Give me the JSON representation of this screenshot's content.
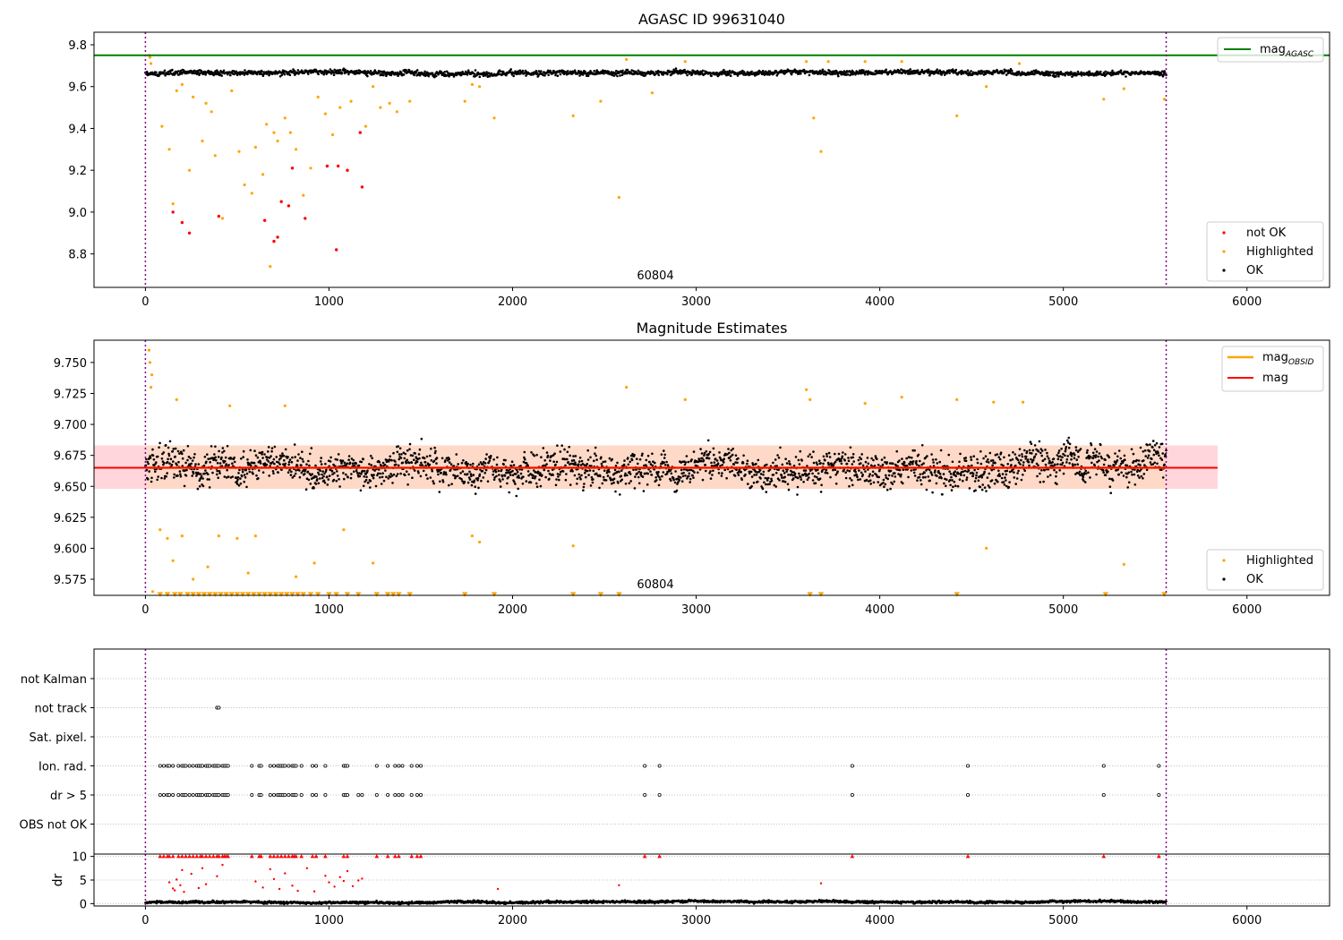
{
  "figure": {
    "window_size": "1500x1050"
  },
  "colors": {
    "ok": "#000000",
    "highlighted": "#ffa500",
    "not_ok": "#ff0000",
    "agasc_line": "#008000",
    "mag_line": "#ff0000",
    "obsid_line": "#ffa500",
    "band_outer": "#ffd6dc",
    "band_inner": "#ffd9c8",
    "boundary": "#800080",
    "grid": "#b0b0b0"
  },
  "chart_data": [
    {
      "type": "scatter",
      "title": "AGASC ID 99631040",
      "xlim": [
        -280,
        6450
      ],
      "ylim": [
        8.64,
        9.86
      ],
      "xticks": [
        0,
        1000,
        2000,
        3000,
        4000,
        5000,
        6000
      ],
      "yticks": [
        8.8,
        9.0,
        9.2,
        9.4,
        9.6,
        9.8
      ],
      "grid": false,
      "legend": "lower right",
      "annotation": "60804",
      "agasc_line": {
        "name": "mag_AGASC",
        "y": 9.75,
        "legend": "upper right"
      },
      "vertical_lines": [
        0,
        5560
      ],
      "ok_series": {
        "name": "OK",
        "x_range": [
          0,
          5560
        ],
        "mean": 9.665,
        "noise": 0.012
      },
      "series": [
        {
          "name": "not OK",
          "x": [
            150,
            200,
            240,
            400,
            650,
            700,
            720,
            740,
            780,
            800,
            870,
            990,
            1040,
            1050,
            1100,
            1170,
            1180
          ],
          "y": [
            9.0,
            8.95,
            8.9,
            8.98,
            8.96,
            8.86,
            8.88,
            9.05,
            9.03,
            9.21,
            8.97,
            9.22,
            8.82,
            9.22,
            9.2,
            9.38,
            9.12
          ]
        },
        {
          "name": "Highlighted",
          "x": [
            20,
            25,
            30,
            90,
            130,
            150,
            170,
            200,
            240,
            260,
            310,
            330,
            360,
            380,
            420,
            470,
            510,
            540,
            580,
            600,
            640,
            660,
            680,
            700,
            720,
            760,
            790,
            820,
            860,
            900,
            940,
            980,
            1020,
            1060,
            1120,
            1200,
            1240,
            1280,
            1330,
            1370,
            1440,
            1740,
            1780,
            1820,
            1900,
            2330,
            2480,
            2580,
            2620,
            2760,
            2940,
            3600,
            3640,
            3680,
            3720,
            3920,
            4120,
            4420,
            4580,
            4760,
            5220,
            5330,
            5550
          ],
          "y": [
            9.75,
            9.74,
            9.71,
            9.41,
            9.3,
            9.04,
            9.58,
            9.61,
            9.2,
            9.55,
            9.34,
            9.52,
            9.48,
            9.27,
            8.97,
            9.58,
            9.29,
            9.13,
            9.09,
            9.31,
            9.18,
            9.42,
            8.74,
            9.38,
            9.34,
            9.45,
            9.38,
            9.3,
            9.08,
            9.21,
            9.55,
            9.47,
            9.37,
            9.5,
            9.53,
            9.41,
            9.6,
            9.5,
            9.52,
            9.48,
            9.53,
            9.53,
            9.61,
            9.6,
            9.45,
            9.46,
            9.53,
            9.07,
            9.73,
            9.57,
            9.72,
            9.72,
            9.45,
            9.29,
            9.72,
            9.72,
            9.72,
            9.46,
            9.6,
            9.71,
            9.54,
            9.59,
            9.54
          ]
        }
      ],
      "legend_entries": [
        "not OK",
        "Highlighted",
        "OK"
      ]
    },
    {
      "type": "scatter",
      "title": "Magnitude Estimates",
      "xlim": [
        -280,
        6450
      ],
      "ylim": [
        9.562,
        9.768
      ],
      "xticks": [
        0,
        1000,
        2000,
        3000,
        4000,
        5000,
        6000
      ],
      "yticks": [
        9.575,
        9.6,
        9.625,
        9.65,
        9.675,
        9.7,
        9.725,
        9.75
      ],
      "grid": false,
      "legend": "lower right",
      "annotation": "60804",
      "mag_line": {
        "name": "mag",
        "y": 9.665,
        "x_range": [
          -280,
          5840
        ]
      },
      "obsid_line": {
        "name": "mag_OBSID",
        "y": 9.665,
        "x_range": [
          0,
          5560
        ]
      },
      "band_outer": {
        "y_range": [
          9.648,
          9.683
        ],
        "x_range": [
          -280,
          5840
        ]
      },
      "band_inner": {
        "y_range": [
          9.648,
          9.683
        ],
        "x_range": [
          0,
          5560
        ]
      },
      "vertical_lines": [
        0,
        5560
      ],
      "ok_series": {
        "name": "OK",
        "x_range": [
          0,
          5560
        ],
        "mean": 9.665,
        "noise": 0.014
      },
      "series": [
        {
          "name": "Highlighted",
          "x": [
            20,
            25,
            30,
            35,
            40,
            80,
            120,
            150,
            170,
            200,
            260,
            340,
            400,
            460,
            500,
            560,
            600,
            760,
            820,
            920,
            1080,
            1240,
            1780,
            1820,
            2330,
            2620,
            2940,
            3600,
            3620,
            3920,
            4120,
            4420,
            4580,
            4620,
            4780,
            5330
          ],
          "y": [
            9.76,
            9.75,
            9.73,
            9.74,
            9.565,
            9.615,
            9.608,
            9.59,
            9.72,
            9.61,
            9.575,
            9.585,
            9.61,
            9.715,
            9.608,
            9.58,
            9.61,
            9.715,
            9.577,
            9.588,
            9.615,
            9.588,
            9.61,
            9.605,
            9.602,
            9.73,
            9.72,
            9.728,
            9.72,
            9.717,
            9.722,
            9.72,
            9.6,
            9.718,
            9.718,
            9.587
          ]
        },
        {
          "name": "Highlighted (clipped)",
          "x": [
            80,
            120,
            160,
            190,
            230,
            260,
            290,
            320,
            350,
            380,
            410,
            440,
            470,
            500,
            530,
            560,
            590,
            620,
            650,
            680,
            710,
            740,
            770,
            800,
            830,
            860,
            900,
            940,
            1000,
            1040,
            1100,
            1160,
            1260,
            1320,
            1350,
            1380,
            1440,
            1740,
            1900,
            2330,
            2480,
            2580,
            3620,
            3680,
            4420,
            5230,
            5550
          ],
          "y": [
            9.563,
            9.563,
            9.563,
            9.563,
            9.563,
            9.563,
            9.563,
            9.563,
            9.563,
            9.563,
            9.563,
            9.563,
            9.563,
            9.563,
            9.563,
            9.563,
            9.563,
            9.563,
            9.563,
            9.563,
            9.563,
            9.563,
            9.563,
            9.563,
            9.563,
            9.563,
            9.563,
            9.563,
            9.563,
            9.563,
            9.563,
            9.563,
            9.563,
            9.563,
            9.563,
            9.563,
            9.563,
            9.563,
            9.563,
            9.563,
            9.563,
            9.563,
            9.563,
            9.563,
            9.563,
            9.563,
            9.563
          ]
        }
      ],
      "legend_entries_top": [
        "mag_OBSID",
        "mag"
      ],
      "legend_entries_bottom": [
        "Highlighted",
        "OK"
      ]
    },
    {
      "type": "scatter",
      "title": "",
      "xlim": [
        -280,
        6450
      ],
      "category_labels": [
        "not Kalman",
        "not track",
        "Sat. pixel.",
        "Ion. rad.",
        "dr > 5",
        "OBS not OK"
      ],
      "grid": true,
      "vertical_lines": [
        0,
        5560
      ],
      "flag_points": {
        "not track": [
          390,
          400
        ],
        "Ion. rad.": [
          80,
          100,
          120,
          130,
          150,
          180,
          200,
          210,
          220,
          240,
          260,
          280,
          290,
          300,
          310,
          330,
          340,
          350,
          370,
          380,
          390,
          400,
          420,
          430,
          440,
          450,
          580,
          620,
          630,
          680,
          700,
          720,
          730,
          740,
          750,
          760,
          780,
          800,
          810,
          820,
          850,
          910,
          930,
          980,
          1080,
          1090,
          1100,
          1260,
          1320,
          1360,
          1380,
          1400,
          1450,
          1480,
          1500,
          2720,
          2800,
          3850,
          4480,
          5220,
          5520
        ],
        "dr > 5": [
          80,
          100,
          120,
          130,
          150,
          180,
          200,
          210,
          220,
          240,
          260,
          280,
          290,
          300,
          310,
          330,
          340,
          350,
          370,
          380,
          390,
          400,
          420,
          430,
          440,
          450,
          580,
          620,
          630,
          680,
          700,
          720,
          730,
          740,
          750,
          760,
          780,
          800,
          810,
          820,
          850,
          910,
          930,
          980,
          1080,
          1090,
          1100,
          1160,
          1180,
          1260,
          1320,
          1360,
          1380,
          1400,
          1450,
          1480,
          1500,
          2720,
          2800,
          3850,
          4480,
          5220,
          5520
        ]
      }
    },
    {
      "type": "scatter",
      "title": "",
      "ylabel": "dr",
      "xlim": [
        -280,
        6450
      ],
      "ylim": [
        -0.5,
        10.5
      ],
      "xticks": [
        0,
        1000,
        2000,
        3000,
        4000,
        5000,
        6000
      ],
      "yticks": [
        0,
        5,
        10
      ],
      "grid": true,
      "vertical_lines": [
        0,
        5560
      ],
      "ok_series": {
        "name": "OK",
        "x_range": [
          0,
          5560
        ],
        "mean": 0.35,
        "noise": 0.25
      },
      "series": [
        {
          "name": "dr > 5 (clipped)",
          "x": [
            80,
            100,
            120,
            130,
            150,
            180,
            200,
            220,
            240,
            260,
            280,
            300,
            310,
            330,
            350,
            370,
            390,
            400,
            420,
            430,
            440,
            450,
            580,
            620,
            630,
            680,
            700,
            720,
            740,
            760,
            780,
            800,
            810,
            820,
            850,
            910,
            930,
            980,
            1080,
            1100,
            1260,
            1320,
            1360,
            1380,
            1450,
            1480,
            1500,
            2720,
            2800,
            3850,
            4480,
            5220,
            5520
          ],
          "y": [
            10,
            10,
            10,
            10,
            10,
            10,
            10,
            10,
            10,
            10,
            10,
            10,
            10,
            10,
            10,
            10,
            10,
            10,
            10,
            10,
            10,
            10,
            10,
            10,
            10,
            10,
            10,
            10,
            10,
            10,
            10,
            10,
            10,
            10,
            10,
            10,
            10,
            10,
            10,
            10,
            10,
            10,
            10,
            10,
            10,
            10,
            10,
            10,
            10,
            10,
            10,
            10,
            10
          ]
        },
        {
          "name": "dr (flagged)",
          "x": [
            130,
            150,
            160,
            170,
            190,
            200,
            210,
            250,
            290,
            310,
            330,
            390,
            420,
            600,
            640,
            680,
            700,
            730,
            760,
            800,
            830,
            880,
            920,
            980,
            1000,
            1030,
            1060,
            1080,
            1100,
            1130,
            1160,
            1180,
            1920,
            2580,
            3680
          ],
          "y": [
            4.5,
            3.2,
            2.8,
            5.1,
            3.9,
            7.1,
            2.5,
            6.3,
            3.3,
            7.5,
            4.1,
            5.8,
            8.2,
            4.7,
            3.4,
            7.3,
            5.2,
            3.1,
            6.4,
            3.8,
            2.7,
            7.5,
            2.6,
            5.9,
            4.5,
            3.6,
            5.6,
            4.8,
            6.9,
            3.7,
            4.9,
            5.3,
            3.1,
            3.9,
            4.3
          ]
        }
      ]
    }
  ]
}
